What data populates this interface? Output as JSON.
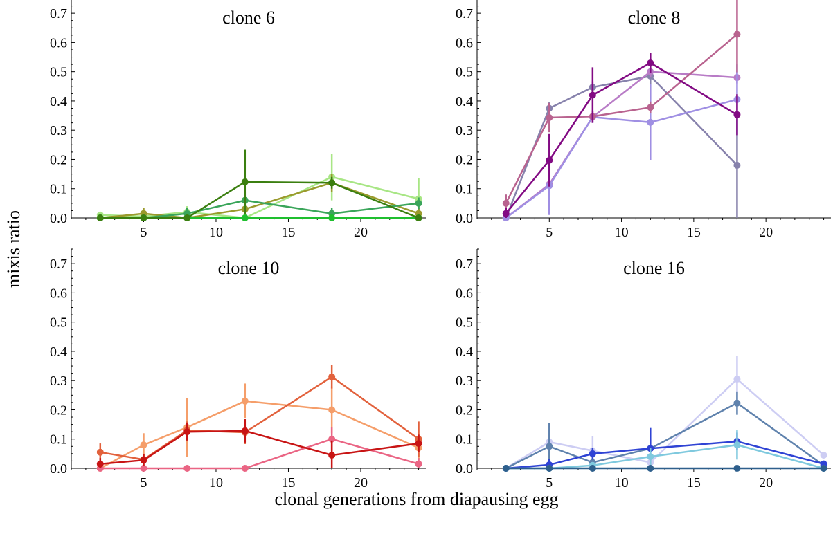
{
  "figure": {
    "ylabel": "mixis ratio",
    "xlabel": "clonal generations from diapausing egg"
  },
  "chart_data": [
    {
      "type": "line",
      "title": "clone 6",
      "xlim": [
        0,
        24.5
      ],
      "ylim": [
        0,
        0.75
      ],
      "xticks": [
        5,
        10,
        15,
        20
      ],
      "yticks": [
        "0.0",
        "0.1",
        "0.2",
        "0.3",
        "0.4",
        "0.5",
        "0.6",
        "0.7"
      ],
      "series": [
        {
          "color": "#a8e685",
          "x": [
            2,
            5,
            8,
            12,
            18,
            24
          ],
          "y": [
            0.01,
            0.005,
            0.02,
            0.0,
            0.14,
            0.065
          ],
          "err": [
            0.01,
            0.01,
            0.02,
            0.0,
            0.08,
            0.07
          ]
        },
        {
          "color": "#9a9a2c",
          "x": [
            2,
            5,
            8,
            12,
            18,
            24
          ],
          "y": [
            0.0,
            0.015,
            0.0,
            0.03,
            0.12,
            0.015
          ],
          "err": [
            0.0,
            0.02,
            0.0,
            0.03,
            0.03,
            0.02
          ]
        },
        {
          "color": "#3aa55a",
          "x": [
            2,
            5,
            8,
            12,
            18,
            24
          ],
          "y": [
            0.0,
            0.0,
            0.015,
            0.06,
            0.015,
            0.05
          ],
          "err": [
            0.0,
            0.0,
            0.02,
            0.03,
            0.02,
            0.02
          ]
        },
        {
          "color": "#1fbf2f",
          "x": [
            2,
            5,
            8,
            12,
            18,
            24
          ],
          "y": [
            0.0,
            0.0,
            0.0,
            0.0,
            0.0,
            0.0
          ],
          "err": [
            0,
            0,
            0,
            0,
            0,
            0
          ]
        },
        {
          "color": "#3b7f10",
          "x": [
            2,
            5,
            8,
            12,
            18,
            24
          ],
          "y": [
            0.0,
            0.0,
            0.0,
            0.123,
            0.12,
            0.0
          ],
          "err": [
            0.0,
            0.0,
            0.0,
            0.11,
            0.02,
            0.0
          ]
        }
      ]
    },
    {
      "type": "line",
      "title": "clone 8",
      "xlim": [
        0,
        24.5
      ],
      "ylim": [
        0,
        0.75
      ],
      "xticks": [
        5,
        10,
        15,
        20
      ],
      "yticks": [
        "0.0",
        "0.1",
        "0.2",
        "0.3",
        "0.4",
        "0.5",
        "0.6",
        "0.7"
      ],
      "series": [
        {
          "color": "#8782ac",
          "x": [
            2,
            5,
            8,
            12,
            18
          ],
          "y": [
            0.0,
            0.375,
            0.447,
            0.485,
            0.18
          ],
          "err": [
            0.0,
            0.02,
            0.02,
            0.08,
            0.18
          ]
        },
        {
          "color": "#b87bc6",
          "x": [
            2,
            5,
            8,
            12,
            18
          ],
          "y": [
            0.0,
            0.115,
            0.345,
            0.5,
            0.48
          ],
          "err": [
            0.0,
            0.1,
            0.02,
            0.02,
            0.02
          ]
        },
        {
          "color": "#9f8fe3",
          "x": [
            2,
            5,
            8,
            12,
            18
          ],
          "y": [
            0.0,
            0.11,
            0.345,
            0.327,
            0.405
          ],
          "err": [
            0.0,
            0.1,
            0.02,
            0.13,
            0.12
          ]
        },
        {
          "color": "#b9638f",
          "x": [
            2,
            5,
            8,
            12,
            18
          ],
          "y": [
            0.05,
            0.343,
            0.347,
            0.378,
            0.628
          ],
          "err": [
            0.03,
            0.05,
            0.02,
            0.02,
            0.13
          ]
        },
        {
          "color": "#820a83",
          "x": [
            2,
            5,
            8,
            12,
            18
          ],
          "y": [
            0.015,
            0.197,
            0.42,
            0.53,
            0.353
          ],
          "err": [
            0.02,
            0.09,
            0.095,
            0.035,
            0.07
          ]
        }
      ]
    },
    {
      "type": "line",
      "title": "clone 10",
      "xlim": [
        0,
        24.5
      ],
      "ylim": [
        0,
        0.75
      ],
      "xticks": [
        5,
        10,
        15,
        20
      ],
      "yticks": [
        "0.0",
        "0.1",
        "0.2",
        "0.3",
        "0.4",
        "0.5",
        "0.6",
        "0.7"
      ],
      "series": [
        {
          "color": "#f59e6a",
          "x": [
            2,
            5,
            8,
            12,
            18,
            24
          ],
          "y": [
            0.0,
            0.08,
            0.14,
            0.23,
            0.2,
            0.07
          ],
          "err": [
            0.0,
            0.04,
            0.1,
            0.06,
            0.08,
            0.04
          ]
        },
        {
          "color": "#e2613c",
          "x": [
            2,
            5,
            8,
            12,
            18,
            24
          ],
          "y": [
            0.055,
            0.03,
            0.13,
            0.123,
            0.313,
            0.1
          ],
          "err": [
            0.03,
            0.02,
            0.03,
            0.04,
            0.04,
            0.06
          ]
        },
        {
          "color": "#ea6584",
          "x": [
            2,
            5,
            8,
            12,
            18,
            24
          ],
          "y": [
            0.0,
            0.0,
            0.0,
            0.0,
            0.1,
            0.015
          ],
          "err": [
            0.0,
            0.0,
            0.0,
            0.0,
            0.04,
            0.02
          ]
        },
        {
          "color": "#c81414",
          "x": [
            2,
            5,
            8,
            12,
            18,
            24
          ],
          "y": [
            0.015,
            0.028,
            0.125,
            0.128,
            0.045,
            0.085
          ],
          "err": [
            0.02,
            0.02,
            0.03,
            0.04,
            0.05,
            0.03
          ]
        }
      ]
    },
    {
      "type": "line",
      "title": "clone 16",
      "xlim": [
        0,
        24.5
      ],
      "ylim": [
        0,
        0.75
      ],
      "xticks": [
        5,
        10,
        15,
        20
      ],
      "yticks": [
        "0.0",
        "0.1",
        "0.2",
        "0.3",
        "0.4",
        "0.5",
        "0.6",
        "0.7"
      ],
      "series": [
        {
          "color": "#cdcdf3",
          "x": [
            2,
            5,
            8,
            12,
            18,
            24
          ],
          "y": [
            0.0,
            0.09,
            0.06,
            0.02,
            0.305,
            0.045
          ],
          "err": [
            0.0,
            0.04,
            0.05,
            0.02,
            0.08,
            0.01
          ]
        },
        {
          "color": "#5f82ad",
          "x": [
            2,
            5,
            8,
            12,
            18,
            24
          ],
          "y": [
            0.0,
            0.075,
            0.02,
            0.068,
            0.223,
            0.01
          ],
          "err": [
            0.0,
            0.08,
            0.02,
            0.03,
            0.04,
            0.01
          ]
        },
        {
          "color": "#2f43d4",
          "x": [
            2,
            5,
            8,
            12,
            18,
            24
          ],
          "y": [
            0.0,
            0.012,
            0.05,
            0.068,
            0.092,
            0.015
          ],
          "err": [
            0.0,
            0.02,
            0.02,
            0.07,
            0.03,
            0.01
          ]
        },
        {
          "color": "#7fc9de",
          "x": [
            2,
            5,
            8,
            12,
            18,
            24
          ],
          "y": [
            0.0,
            0.0,
            0.01,
            0.04,
            0.08,
            0.0
          ],
          "err": [
            0.0,
            0.0,
            0.01,
            0.03,
            0.05,
            0.0
          ]
        },
        {
          "color": "#2e5f8c",
          "x": [
            2,
            5,
            8,
            12,
            18,
            24
          ],
          "y": [
            0.0,
            0.0,
            0.0,
            0.0,
            0.0,
            0.0
          ],
          "err": [
            0,
            0,
            0,
            0,
            0,
            0
          ]
        }
      ]
    }
  ]
}
